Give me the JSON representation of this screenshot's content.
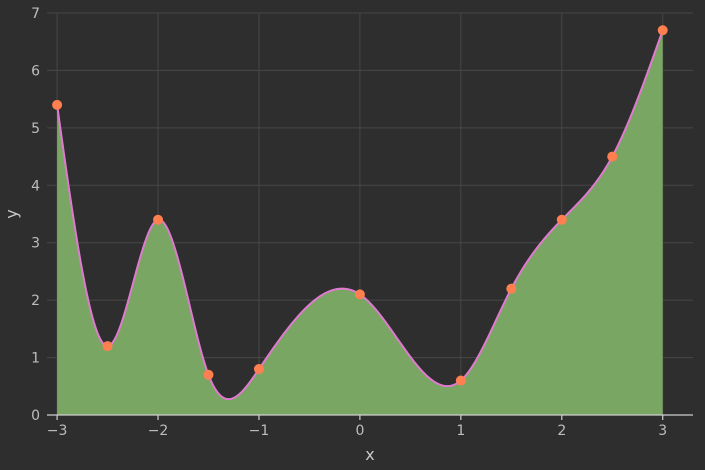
{
  "chart_data": {
    "type": "area",
    "title": "",
    "xlabel": "x",
    "ylabel": "y",
    "xlim": [
      -3.1,
      3.3
    ],
    "ylim": [
      0,
      7
    ],
    "xticks": [
      -3,
      -2,
      -1,
      0,
      1,
      2,
      3
    ],
    "yticks": [
      0,
      1,
      2,
      3,
      4,
      5,
      6,
      7
    ],
    "xtick_labels": [
      "−3",
      "−2",
      "−1",
      "0",
      "1",
      "2",
      "3"
    ],
    "ytick_labels": [
      "0",
      "1",
      "2",
      "3",
      "4",
      "5",
      "6",
      "7"
    ],
    "grid": true,
    "series": [
      {
        "x": [
          -3,
          -2.5,
          -2,
          -1.5,
          -1,
          0,
          1,
          1.5,
          2,
          2.5,
          3
        ],
        "y": [
          5.4,
          1.2,
          3.4,
          0.7,
          0.8,
          2.1,
          0.6,
          2.2,
          3.4,
          4.5,
          6.7
        ],
        "fill_color": "#7aa663",
        "line_color": "#e07ad0",
        "marker_color": "#ff7f50"
      }
    ],
    "colors": {
      "background": "#2e2e2e",
      "grid": "#474747",
      "axis": "#cfcfcf",
      "text": "#bdbdbd"
    }
  }
}
